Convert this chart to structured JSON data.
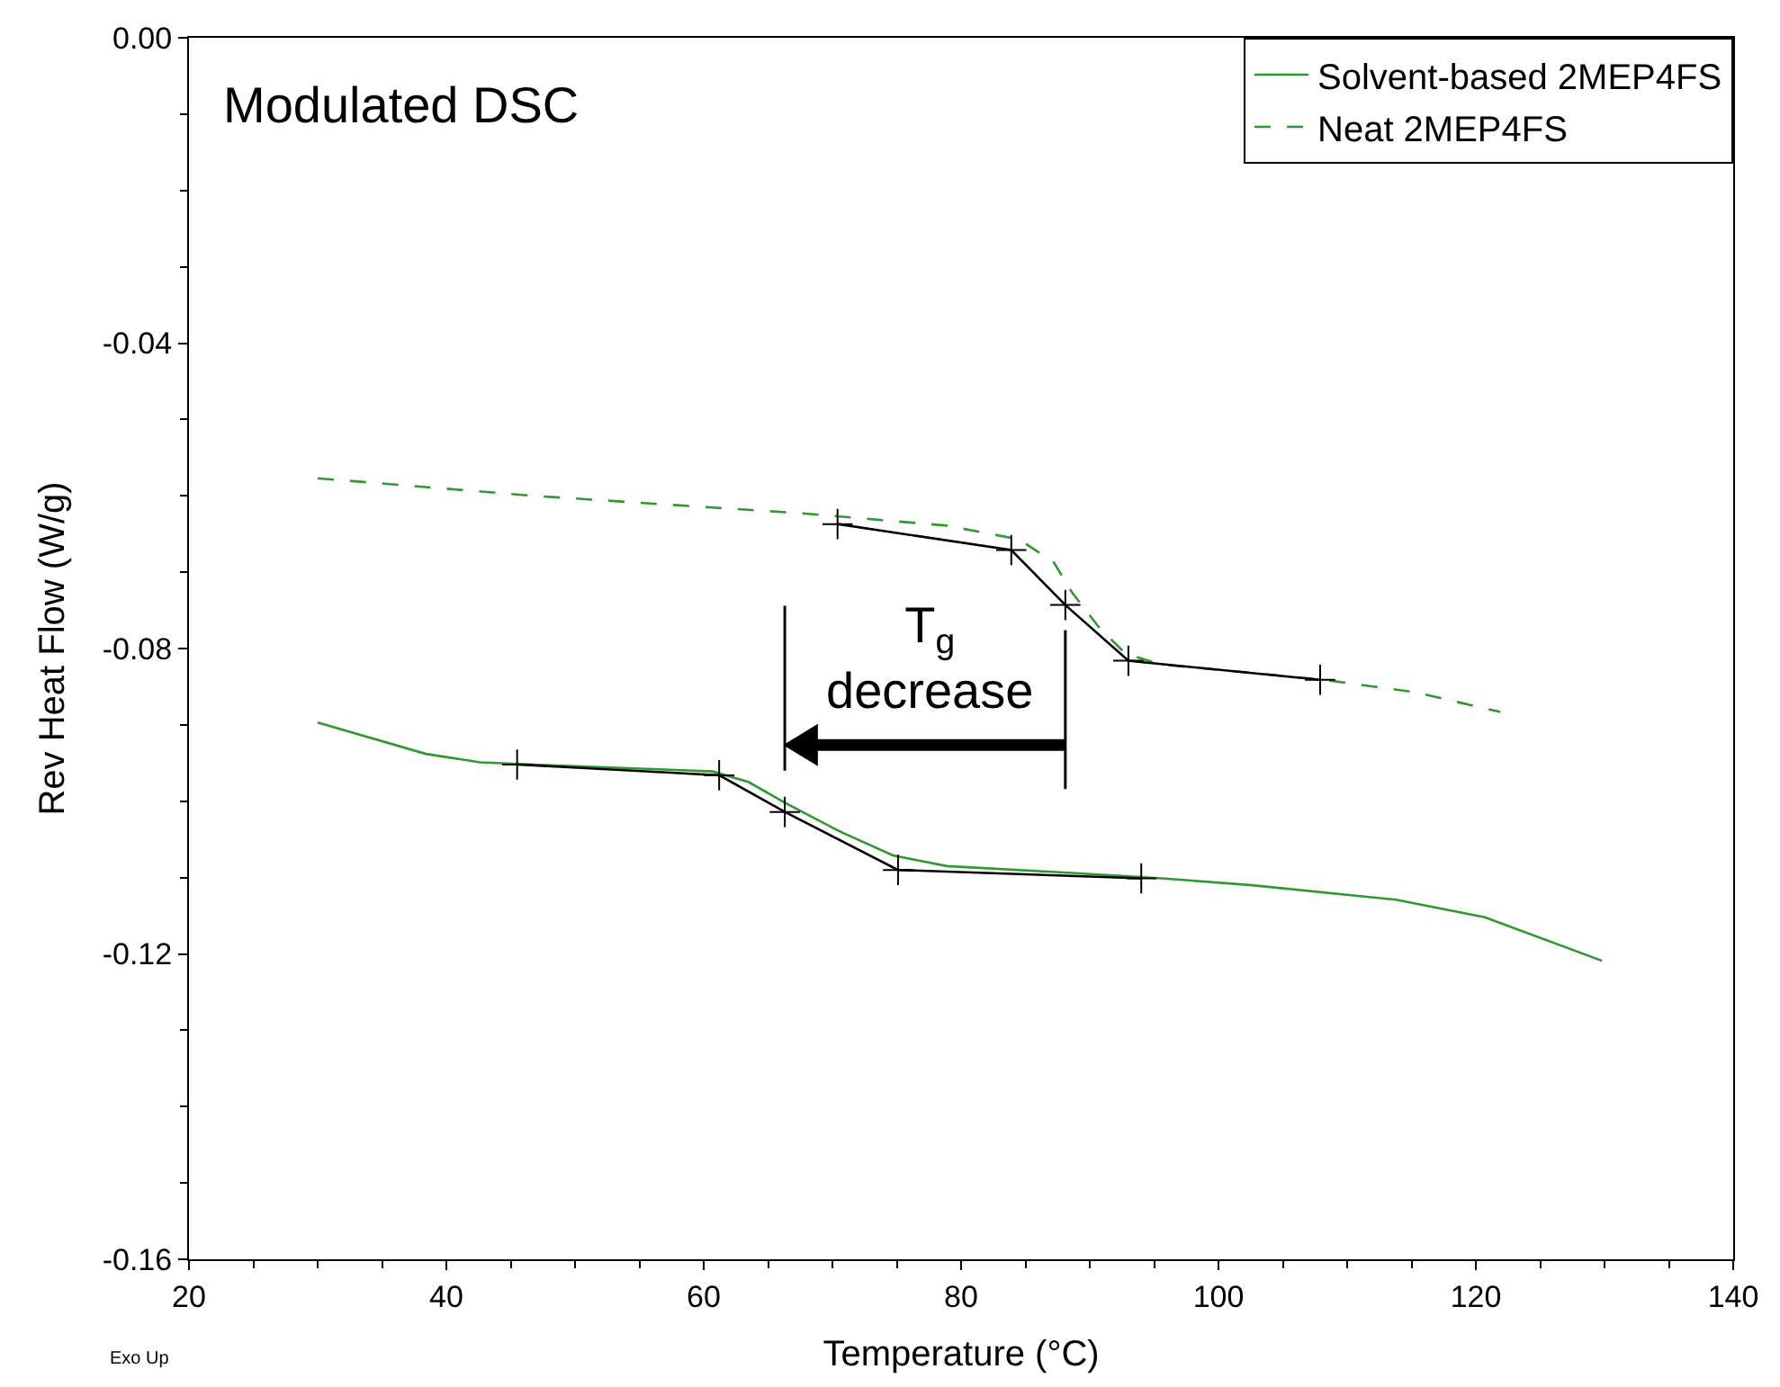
{
  "chart_data": {
    "type": "line",
    "xlabel": "Temperature (°C)",
    "ylabel": "Rev Heat Flow (W/g)",
    "xlim": [
      20,
      140
    ],
    "xticks": [
      20,
      40,
      60,
      80,
      100,
      120,
      140
    ],
    "ylim": [
      -0.16,
      0.0
    ],
    "yticks": [
      {
        "value": -0.16,
        "label": "-0.16"
      },
      {
        "value": -0.12,
        "label": "-0.12"
      },
      {
        "value": -0.08,
        "label": "-0.08"
      },
      {
        "value": -0.04,
        "label": "-0.04"
      },
      {
        "value": 0.0,
        "label": "0.00"
      }
    ],
    "legend": "top right",
    "marker": "none",
    "annotations": [
      "Modulated DSC",
      "T$_{g}$\ndecrease",
      "Exo Up"
    ],
    "series": [
      {
        "name": "Solvent-based 2MEP4FS",
        "color": "#2e9a2e",
        "line_style": "solid",
        "x": [
          30.0,
          38.4,
          42.6,
          46.8,
          60.7,
          63.5,
          66.3,
          70.5,
          74.7,
          78.9,
          88.6,
          95.6,
          102.6,
          113.8,
          120.7,
          129.8
        ],
        "values": [
          -0.0897,
          -0.0938,
          -0.0949,
          -0.0952,
          -0.0961,
          -0.0975,
          -0.1002,
          -0.1039,
          -0.1071,
          -0.1085,
          -0.1094,
          -0.1101,
          -0.111,
          -0.1129,
          -0.1152,
          -0.1209
        ]
      },
      {
        "name": "Neat 2MEP4FS",
        "color": "#2e9a2e",
        "line_style": "dashed",
        "x": [
          30.0,
          46.8,
          67.7,
          78.9,
          84.5,
          87.2,
          88.6,
          90.7,
          92.8,
          95.6,
          102.6,
          108.2,
          115.2,
          121.9
        ],
        "values": [
          -0.0577,
          -0.06,
          -0.0623,
          -0.0639,
          -0.0657,
          -0.0687,
          -0.0726,
          -0.0772,
          -0.0807,
          -0.0821,
          -0.0832,
          -0.0841,
          -0.0857,
          -0.0883
        ]
      },
      {
        "color": "#000000",
        "line_style": "solid",
        "marker": "cross",
        "x": [
          70.4,
          83.9,
          88.1,
          93.0,
          107.9
        ],
        "values": [
          -0.0637,
          -0.0671,
          -0.0743,
          -0.0816,
          -0.0841
        ]
      },
      {
        "color": "#000000",
        "line_style": "solid",
        "marker": "cross",
        "x": [
          45.5,
          61.2,
          66.3,
          75.1,
          94.0
        ],
        "values": [
          -0.0952,
          -0.0966,
          -0.1014,
          -0.109,
          -0.1101
        ]
      }
    ]
  }
}
